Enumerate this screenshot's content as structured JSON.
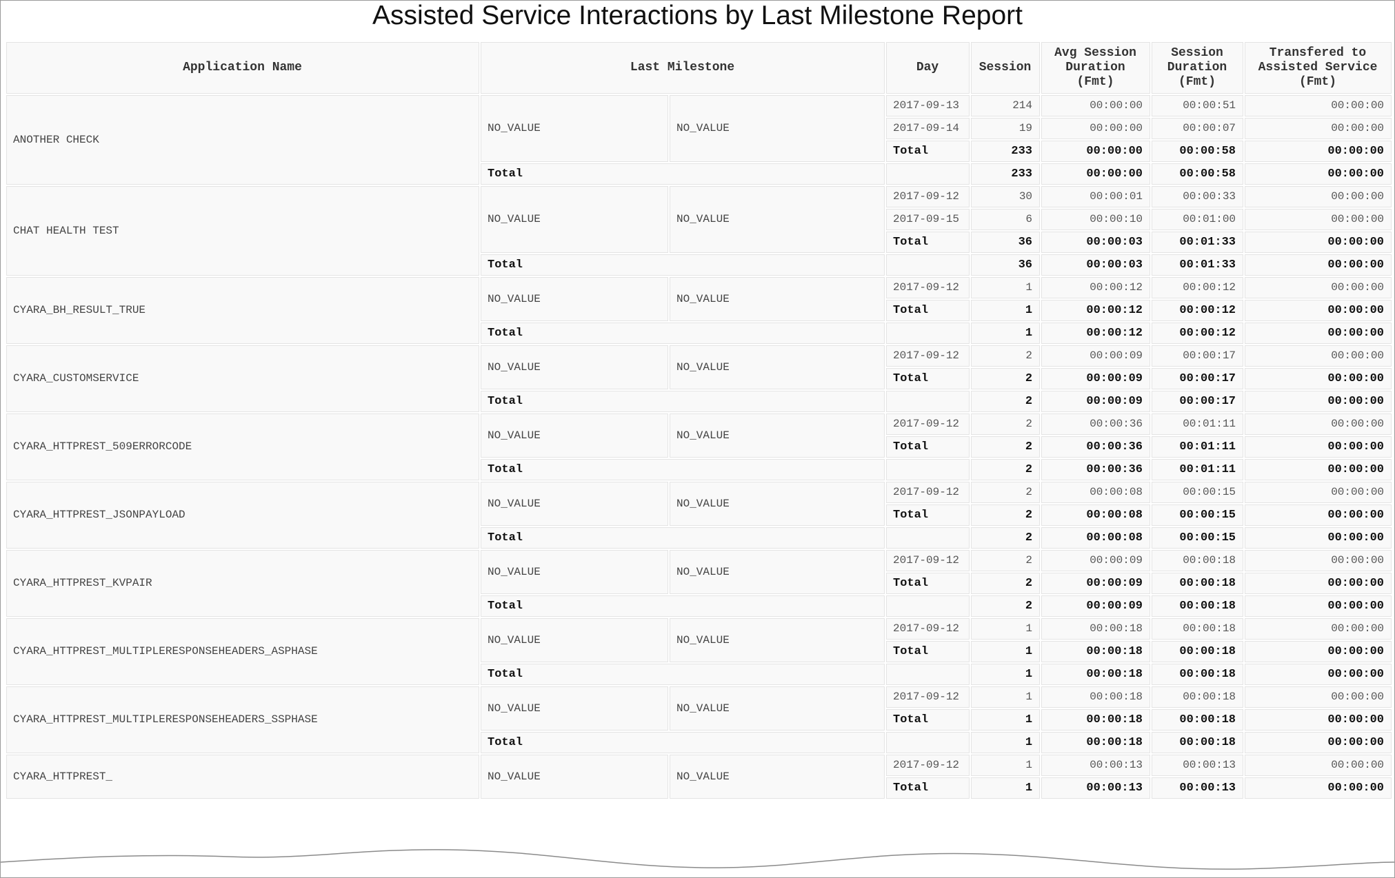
{
  "title": "Assisted Service Interactions by Last Milestone Report",
  "table": {
    "headers": [
      "Application Name",
      "Last Milestone",
      "Day",
      "Session",
      "Avg Session Duration (Fmt)",
      "Session Duration (Fmt)",
      "Transfered to Assisted Service (Fmt)"
    ],
    "groups": [
      {
        "application": "ANOTHER CHECK",
        "milestone": [
          "NO_VALUE",
          "NO_VALUE"
        ],
        "days": [
          [
            "2017-09-13",
            214,
            "00:00:00",
            "00:00:51",
            "00:00:00"
          ],
          [
            "2017-09-14",
            19,
            "00:00:00",
            "00:00:07",
            "00:00:00"
          ]
        ],
        "subtotal": [
          "Total",
          233,
          "00:00:00",
          "00:00:58",
          "00:00:00"
        ],
        "total": [
          "Total",
          233,
          "00:00:00",
          "00:00:58",
          "00:00:00"
        ]
      },
      {
        "application": "CHAT HEALTH TEST",
        "milestone": [
          "NO_VALUE",
          "NO_VALUE"
        ],
        "days": [
          [
            "2017-09-12",
            30,
            "00:00:01",
            "00:00:33",
            "00:00:00"
          ],
          [
            "2017-09-15",
            6,
            "00:00:10",
            "00:01:00",
            "00:00:00"
          ]
        ],
        "subtotal": [
          "Total",
          36,
          "00:00:03",
          "00:01:33",
          "00:00:00"
        ],
        "total": [
          "Total",
          36,
          "00:00:03",
          "00:01:33",
          "00:00:00"
        ]
      },
      {
        "application": "CYARA_BH_RESULT_TRUE",
        "milestone": [
          "NO_VALUE",
          "NO_VALUE"
        ],
        "days": [
          [
            "2017-09-12",
            1,
            "00:00:12",
            "00:00:12",
            "00:00:00"
          ]
        ],
        "subtotal": [
          "Total",
          1,
          "00:00:12",
          "00:00:12",
          "00:00:00"
        ],
        "total": [
          "Total",
          1,
          "00:00:12",
          "00:00:12",
          "00:00:00"
        ]
      },
      {
        "application": "CYARA_CUSTOMSERVICE",
        "milestone": [
          "NO_VALUE",
          "NO_VALUE"
        ],
        "days": [
          [
            "2017-09-12",
            2,
            "00:00:09",
            "00:00:17",
            "00:00:00"
          ]
        ],
        "subtotal": [
          "Total",
          2,
          "00:00:09",
          "00:00:17",
          "00:00:00"
        ],
        "total": [
          "Total",
          2,
          "00:00:09",
          "00:00:17",
          "00:00:00"
        ]
      },
      {
        "application": "CYARA_HTTPREST_509ERRORCODE",
        "milestone": [
          "NO_VALUE",
          "NO_VALUE"
        ],
        "days": [
          [
            "2017-09-12",
            2,
            "00:00:36",
            "00:01:11",
            "00:00:00"
          ]
        ],
        "subtotal": [
          "Total",
          2,
          "00:00:36",
          "00:01:11",
          "00:00:00"
        ],
        "total": [
          "Total",
          2,
          "00:00:36",
          "00:01:11",
          "00:00:00"
        ]
      },
      {
        "application": "CYARA_HTTPREST_JSONPAYLOAD",
        "milestone": [
          "NO_VALUE",
          "NO_VALUE"
        ],
        "days": [
          [
            "2017-09-12",
            2,
            "00:00:08",
            "00:00:15",
            "00:00:00"
          ]
        ],
        "subtotal": [
          "Total",
          2,
          "00:00:08",
          "00:00:15",
          "00:00:00"
        ],
        "total": [
          "Total",
          2,
          "00:00:08",
          "00:00:15",
          "00:00:00"
        ]
      },
      {
        "application": "CYARA_HTTPREST_KVPAIR",
        "milestone": [
          "NO_VALUE",
          "NO_VALUE"
        ],
        "days": [
          [
            "2017-09-12",
            2,
            "00:00:09",
            "00:00:18",
            "00:00:00"
          ]
        ],
        "subtotal": [
          "Total",
          2,
          "00:00:09",
          "00:00:18",
          "00:00:00"
        ],
        "total": [
          "Total",
          2,
          "00:00:09",
          "00:00:18",
          "00:00:00"
        ]
      },
      {
        "application": "CYARA_HTTPREST_MULTIPLERESPONSEHEADERS_ASPHASE",
        "milestone": [
          "NO_VALUE",
          "NO_VALUE"
        ],
        "days": [
          [
            "2017-09-12",
            1,
            "00:00:18",
            "00:00:18",
            "00:00:00"
          ]
        ],
        "subtotal": [
          "Total",
          1,
          "00:00:18",
          "00:00:18",
          "00:00:00"
        ],
        "total": [
          "Total",
          1,
          "00:00:18",
          "00:00:18",
          "00:00:00"
        ]
      },
      {
        "application": "CYARA_HTTPREST_MULTIPLERESPONSEHEADERS_SSPHASE",
        "milestone": [
          "NO_VALUE",
          "NO_VALUE"
        ],
        "days": [
          [
            "2017-09-12",
            1,
            "00:00:18",
            "00:00:18",
            "00:00:00"
          ]
        ],
        "subtotal": [
          "Total",
          1,
          "00:00:18",
          "00:00:18",
          "00:00:00"
        ],
        "total": [
          "Total",
          1,
          "00:00:18",
          "00:00:18",
          "00:00:00"
        ]
      },
      {
        "application": "CYARA_HTTPREST_",
        "milestone": [
          "NO_VALUE",
          "NO_VALUE"
        ],
        "days": [
          [
            "2017-09-12",
            1,
            "00:00:13",
            "00:00:13",
            "00:00:00"
          ]
        ],
        "subtotal": [
          "Total",
          1,
          "00:00:13",
          "00:00:13",
          "00:00:00"
        ]
      }
    ]
  }
}
